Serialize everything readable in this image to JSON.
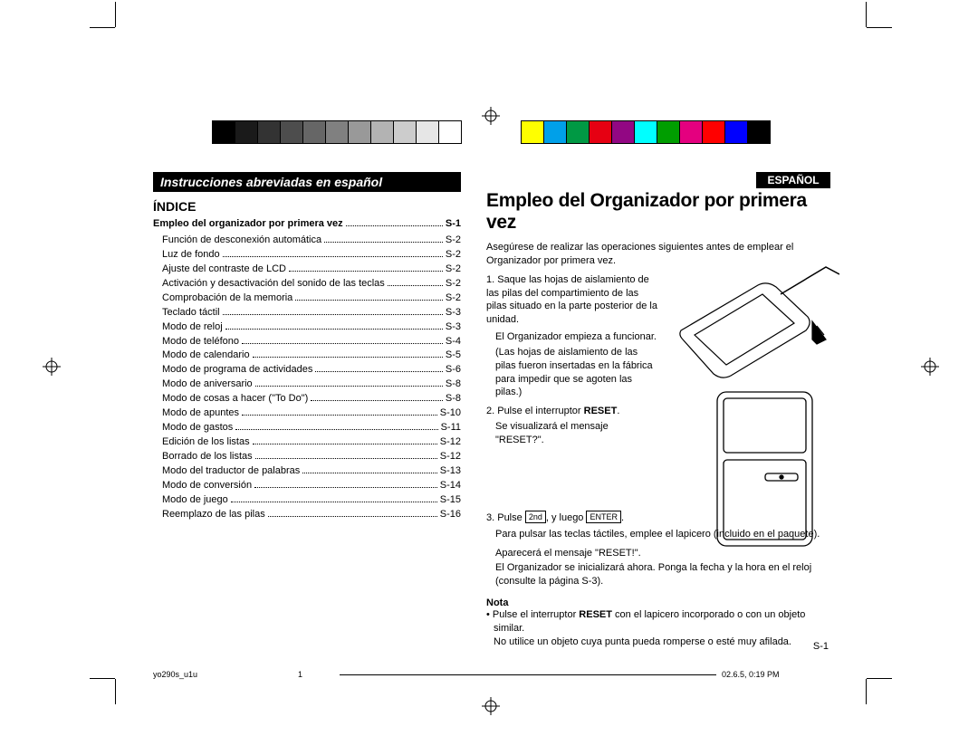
{
  "colorbar": {
    "greys": [
      "#000000",
      "#1a1a1a",
      "#333333",
      "#4d4d4d",
      "#666666",
      "#808080",
      "#999999",
      "#b3b3b3",
      "#cccccc",
      "#e6e6e6",
      "#ffffff"
    ],
    "colors": [
      "#ffff00",
      "#00a0e9",
      "#009944",
      "#e60012",
      "#920783",
      "#00ffff",
      "#009e00",
      "#e4007f",
      "#ff0000",
      "#0000ff",
      "#000000"
    ]
  },
  "left": {
    "banner": "Instrucciones abreviadas en español",
    "idx_title": "ÍNDICE",
    "index_head": {
      "label": "Empleo del organizador por primera vez",
      "page": "S-1"
    },
    "index": [
      {
        "label": "Función de desconexión automática",
        "page": "S-2"
      },
      {
        "label": "Luz de fondo",
        "page": "S-2"
      },
      {
        "label": "Ajuste del contraste de LCD",
        "page": "S-2"
      },
      {
        "label": "Activación y desactivación del sonido de las teclas",
        "page": "S-2"
      },
      {
        "label": "Comprobación de la memoria",
        "page": "S-2"
      },
      {
        "label": "Teclado táctil",
        "page": "S-3"
      },
      {
        "label": "Modo de reloj",
        "page": "S-3"
      },
      {
        "label": "Modo de teléfono",
        "page": "S-4"
      },
      {
        "label": "Modo de calendario",
        "page": "S-5"
      },
      {
        "label": "Modo de programa de actividades",
        "page": "S-6"
      },
      {
        "label": "Modo de aniversario",
        "page": "S-8"
      },
      {
        "label": "Modo de cosas a hacer (\"To Do\")",
        "page": "S-8"
      },
      {
        "label": "Modo de apuntes",
        "page": "S-10"
      },
      {
        "label": "Modo de gastos",
        "page": "S-11"
      },
      {
        "label": "Edición de los listas",
        "page": "S-12"
      },
      {
        "label": "Borrado de los listas",
        "page": "S-12"
      },
      {
        "label": "Modo del traductor de palabras",
        "page": "S-13"
      },
      {
        "label": "Modo de conversión",
        "page": "S-14"
      },
      {
        "label": "Modo de juego",
        "page": "S-15"
      },
      {
        "label": "Reemplazo de las pilas",
        "page": "S-16"
      }
    ]
  },
  "right": {
    "lang_tab": "ESPAÑOL",
    "title": "Empleo del Organizador por primera vez",
    "intro": "Asegúrese de realizar las operaciones siguientes antes de emplear el Organizador por primera vez.",
    "step1a": "1. Saque las hojas de aislamiento de las pilas del compartimiento de las pilas situado en la parte posterior de la unidad.",
    "step1b": "El Organizador empieza a funcionar.",
    "step1c": "(Las hojas de aislamiento de las pilas fueron insertadas en la fábrica para impedir que se agoten las pilas.)",
    "step2a": "2. Pulse el interruptor ",
    "step2a_bold": "RESET",
    "step2a_end": ".",
    "step2b": "Se visualizará el mensaje \"RESET?\".",
    "step3_pre": "3. Pulse ",
    "key1": "2nd",
    "step3_mid": ", y luego ",
    "key2": "ENTER",
    "step3_end": ".",
    "step3_body1": "Para pulsar las teclas táctiles, emplee el lapicero (incluido en el paquete).",
    "step3_body2": "Aparecerá el mensaje \"RESET!\".",
    "step3_body3": "El Organizador se inicializará ahora. Ponga la fecha y la hora en el reloj (consulte la página S-3).",
    "nota_title": "Nota",
    "nota_b1_pre": "• Pulse el interruptor ",
    "nota_b1_bold": "RESET",
    "nota_b1_post": " con el lapicero incorporado o con un objeto similar.",
    "nota_b2": "No utilice un objeto cuya punta pueda romperse o esté muy afilada."
  },
  "pagenum": "S-1",
  "footer": {
    "file": "yo290s_u1u",
    "page": "1",
    "date": "02.6.5, 0:19 PM"
  }
}
